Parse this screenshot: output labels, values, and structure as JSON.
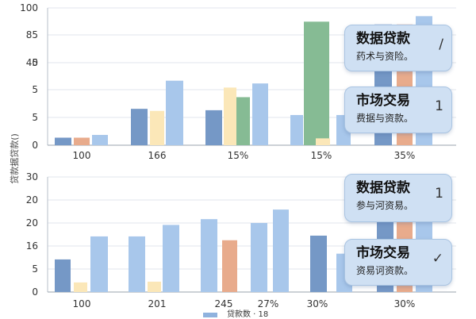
{
  "y_axis_label": "贷款据贷款()",
  "legend": {
    "label": "贷款数 · 18",
    "color": "#8fb2de"
  },
  "colors": {
    "blue_dark": "#7598c6",
    "blue_light": "#a8c7eb",
    "orange": "#e8ab8c",
    "yellow": "#fbe7b8",
    "green": "#86bb94"
  },
  "chart_data": [
    {
      "type": "bar",
      "panel": "top",
      "ylim": [
        0,
        100
      ],
      "yticks": [
        "0",
        "5",
        "5",
        "5",
        "40",
        "85",
        "100"
      ],
      "categories": [
        "100",
        "166",
        "15%",
        "15%",
        "35%"
      ],
      "bars": [
        {
          "category": 0,
          "color": "blue_dark",
          "value": 5.5
        },
        {
          "category": 0,
          "color": "orange",
          "value": 5.5
        },
        {
          "category": 0,
          "color": "blue_light",
          "value": 7.5
        },
        {
          "category": 1,
          "color": "blue_dark",
          "value": 26.5
        },
        {
          "category": 1,
          "color": "yellow",
          "value": 25
        },
        {
          "category": 1,
          "color": "blue_light",
          "value": 47
        },
        {
          "category": 2,
          "color": "blue_dark",
          "value": 25.5
        },
        {
          "category": 2,
          "color": "yellow",
          "value": 42
        },
        {
          "category": 2,
          "color": "green",
          "value": 35
        },
        {
          "category": 2,
          "color": "blue_light",
          "value": 45
        },
        {
          "category": 3,
          "color": "blue_light",
          "value": 22
        },
        {
          "category": 3,
          "color": "green",
          "value": 90
        },
        {
          "category": 3,
          "color": "green",
          "value": 90
        },
        {
          "category": 3,
          "color": "yellow",
          "value": 5
        },
        {
          "category": 3,
          "color": "blue_light",
          "value": 22
        },
        {
          "category": 4,
          "color": "blue_dark",
          "value": 88
        },
        {
          "category": 4,
          "color": "orange",
          "value": 88
        },
        {
          "category": 4,
          "color": "blue_light",
          "value": 94
        }
      ]
    },
    {
      "type": "bar",
      "panel": "bottom",
      "ylim": [
        0,
        30
      ],
      "yticks": [
        "0",
        "5",
        "16",
        "20",
        "20",
        "30"
      ],
      "categories": [
        "100",
        "201",
        "245",
        "27%",
        "30%",
        "30%"
      ],
      "bars": [
        {
          "category": 0,
          "color": "blue_dark",
          "value": 8.5
        },
        {
          "category": 0,
          "color": "yellow",
          "value": 2.5
        },
        {
          "category": 0,
          "color": "blue_light",
          "value": 14.5
        },
        {
          "category": 1,
          "color": "blue_light",
          "value": 14.5
        },
        {
          "category": 1,
          "color": "yellow",
          "value": 2.7
        },
        {
          "category": 1,
          "color": "blue_light",
          "value": 17.5
        },
        {
          "category": 2,
          "color": "blue_light",
          "value": 19
        },
        {
          "category": 2,
          "color": "orange",
          "value": 13.5
        },
        {
          "category": 3,
          "color": "blue_light",
          "value": 18
        },
        {
          "category": 3,
          "color": "blue_light",
          "value": 21.5
        },
        {
          "category": 4,
          "color": "blue_dark",
          "value": 14.7
        },
        {
          "category": 4,
          "color": "blue_light",
          "value": 10
        },
        {
          "category": 5,
          "color": "blue_dark",
          "value": 22
        },
        {
          "category": 5,
          "color": "orange",
          "value": 19
        },
        {
          "category": 5,
          "color": "blue_light",
          "value": 20
        }
      ]
    }
  ],
  "callouts": [
    {
      "title": "数据贷款",
      "subtitle": "药术与资险。",
      "icon": "pencil-icon",
      "glyph": "∕"
    },
    {
      "title": "市场交易",
      "subtitle": "费据与资款。",
      "icon": "number-one-icon",
      "glyph": "1"
    },
    {
      "title": "数据贷款",
      "subtitle": "参与河资易。",
      "icon": "number-one-icon",
      "glyph": "1"
    },
    {
      "title": "市场交易",
      "subtitle": "资易诃资款。",
      "icon": "checkmark-icon",
      "glyph": "✓"
    }
  ]
}
